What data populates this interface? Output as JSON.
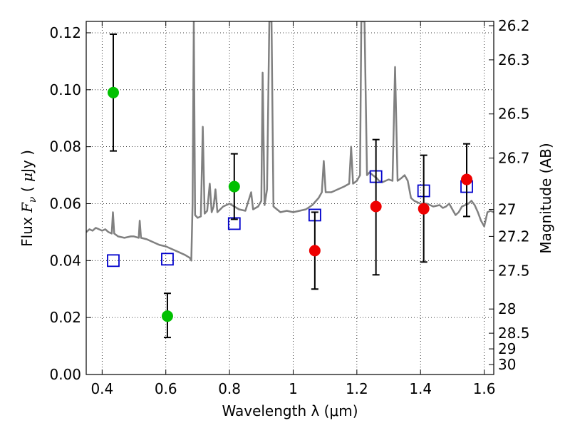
{
  "chart_data": {
    "type": "scatter",
    "xlabel": "Wavelength  λ (μm)",
    "ylabel": "Flux  F_ν  ( μJy )",
    "ylabel_right": "Magnitude (AB)",
    "xlim": [
      0.35,
      1.63
    ],
    "ylim": [
      0.0,
      0.124
    ],
    "grid": true,
    "x_ticks": [
      0.4,
      0.6,
      0.8,
      1.0,
      1.2,
      1.4,
      1.6
    ],
    "x_tick_labels": [
      "0.4",
      "0.6",
      "0.8",
      "1",
      "1.2",
      "1.4",
      "1.6"
    ],
    "y_ticks": [
      0.0,
      0.02,
      0.04,
      0.06,
      0.08,
      0.1,
      0.12
    ],
    "y_tick_labels": [
      "0.00",
      "0.02",
      "0.04",
      "0.06",
      "0.08",
      "0.10",
      "0.12"
    ],
    "right_axis_ticks": [
      {
        "label": "26.2",
        "flux": 0.1225
      },
      {
        "label": "26.3",
        "flux": 0.1105
      },
      {
        "label": "26.5",
        "flux": 0.0915
      },
      {
        "label": "26.7",
        "flux": 0.076
      },
      {
        "label": "27",
        "flux": 0.058
      },
      {
        "label": "27.2",
        "flux": 0.0485
      },
      {
        "label": "27.5",
        "flux": 0.0365
      },
      {
        "label": "28",
        "flux": 0.023
      },
      {
        "label": "28.5",
        "flux": 0.0145
      },
      {
        "label": "29",
        "flux": 0.009
      },
      {
        "label": "30",
        "flux": 0.0035
      }
    ],
    "series": [
      {
        "marker": "circle",
        "color": "#00c000",
        "points": [
          {
            "x": 0.435,
            "y": 0.099,
            "yerr_low": 0.0785,
            "yerr_high": 0.1195
          },
          {
            "x": 0.605,
            "y": 0.0205,
            "yerr_low": 0.013,
            "yerr_high": 0.0285
          },
          {
            "x": 0.815,
            "y": 0.066,
            "yerr_low": 0.0545,
            "yerr_high": 0.0775
          }
        ]
      },
      {
        "marker": "circle",
        "color": "#ee0000",
        "points": [
          {
            "x": 1.068,
            "y": 0.0435,
            "yerr_low": 0.03,
            "yerr_high": 0.057
          },
          {
            "x": 1.26,
            "y": 0.059,
            "yerr_low": 0.035,
            "yerr_high": 0.0825
          },
          {
            "x": 1.41,
            "y": 0.0582,
            "yerr_low": 0.0395,
            "yerr_high": 0.077
          },
          {
            "x": 1.545,
            "y": 0.0685,
            "yerr_low": 0.0555,
            "yerr_high": 0.081
          }
        ]
      },
      {
        "marker": "open-square",
        "color": "#0000cc",
        "points": [
          {
            "x": 0.435,
            "y": 0.04
          },
          {
            "x": 0.605,
            "y": 0.0405
          },
          {
            "x": 0.815,
            "y": 0.053
          },
          {
            "x": 1.068,
            "y": 0.056
          },
          {
            "x": 1.26,
            "y": 0.0695
          },
          {
            "x": 1.41,
            "y": 0.0645
          },
          {
            "x": 1.545,
            "y": 0.066
          }
        ]
      }
    ],
    "spectrum": {
      "color": "#808080",
      "points": [
        [
          0.35,
          0.05
        ],
        [
          0.36,
          0.051
        ],
        [
          0.37,
          0.0505
        ],
        [
          0.38,
          0.0515
        ],
        [
          0.39,
          0.051
        ],
        [
          0.4,
          0.0505
        ],
        [
          0.41,
          0.051
        ],
        [
          0.42,
          0.05
        ],
        [
          0.43,
          0.0495
        ],
        [
          0.434,
          0.057
        ],
        [
          0.438,
          0.0495
        ],
        [
          0.45,
          0.0485
        ],
        [
          0.47,
          0.048
        ],
        [
          0.49,
          0.0485
        ],
        [
          0.5,
          0.0485
        ],
        [
          0.515,
          0.048
        ],
        [
          0.518,
          0.054
        ],
        [
          0.522,
          0.048
        ],
        [
          0.54,
          0.0475
        ],
        [
          0.56,
          0.0465
        ],
        [
          0.58,
          0.0455
        ],
        [
          0.6,
          0.045
        ],
        [
          0.62,
          0.044
        ],
        [
          0.64,
          0.043
        ],
        [
          0.66,
          0.042
        ],
        [
          0.675,
          0.041
        ],
        [
          0.68,
          0.04
        ],
        [
          0.684,
          0.06
        ],
        [
          0.688,
          0.124
        ],
        [
          0.692,
          0.056
        ],
        [
          0.7,
          0.055
        ],
        [
          0.71,
          0.0555
        ],
        [
          0.716,
          0.087
        ],
        [
          0.722,
          0.0565
        ],
        [
          0.73,
          0.0575
        ],
        [
          0.738,
          0.067
        ],
        [
          0.744,
          0.057
        ],
        [
          0.75,
          0.059
        ],
        [
          0.756,
          0.065
        ],
        [
          0.762,
          0.057
        ],
        [
          0.78,
          0.059
        ],
        [
          0.8,
          0.06
        ],
        [
          0.83,
          0.058
        ],
        [
          0.85,
          0.0575
        ],
        [
          0.868,
          0.064
        ],
        [
          0.874,
          0.058
        ],
        [
          0.89,
          0.059
        ],
        [
          0.9,
          0.061
        ],
        [
          0.904,
          0.106
        ],
        [
          0.91,
          0.0595
        ],
        [
          0.918,
          0.065
        ],
        [
          0.925,
          0.124
        ],
        [
          0.932,
          0.124
        ],
        [
          0.938,
          0.059
        ],
        [
          0.96,
          0.057
        ],
        [
          0.98,
          0.0575
        ],
        [
          1.0,
          0.057
        ],
        [
          1.02,
          0.0575
        ],
        [
          1.04,
          0.058
        ],
        [
          1.06,
          0.0595
        ],
        [
          1.08,
          0.062
        ],
        [
          1.09,
          0.064
        ],
        [
          1.096,
          0.075
        ],
        [
          1.102,
          0.064
        ],
        [
          1.12,
          0.064
        ],
        [
          1.14,
          0.065
        ],
        [
          1.16,
          0.066
        ],
        [
          1.176,
          0.067
        ],
        [
          1.182,
          0.08
        ],
        [
          1.188,
          0.067
        ],
        [
          1.2,
          0.068
        ],
        [
          1.21,
          0.07
        ],
        [
          1.214,
          0.124
        ],
        [
          1.224,
          0.124
        ],
        [
          1.232,
          0.07
        ],
        [
          1.24,
          0.071
        ],
        [
          1.25,
          0.07
        ],
        [
          1.262,
          0.069
        ],
        [
          1.27,
          0.068
        ],
        [
          1.28,
          0.0675
        ],
        [
          1.29,
          0.068
        ],
        [
          1.3,
          0.0685
        ],
        [
          1.312,
          0.068
        ],
        [
          1.32,
          0.108
        ],
        [
          1.328,
          0.068
        ],
        [
          1.34,
          0.069
        ],
        [
          1.35,
          0.07
        ],
        [
          1.36,
          0.068
        ],
        [
          1.37,
          0.062
        ],
        [
          1.38,
          0.061
        ],
        [
          1.4,
          0.06
        ],
        [
          1.42,
          0.06
        ],
        [
          1.44,
          0.059
        ],
        [
          1.46,
          0.0595
        ],
        [
          1.47,
          0.0585
        ],
        [
          1.48,
          0.059
        ],
        [
          1.49,
          0.06
        ],
        [
          1.5,
          0.058
        ],
        [
          1.51,
          0.056
        ],
        [
          1.52,
          0.057
        ],
        [
          1.53,
          0.059
        ],
        [
          1.55,
          0.06
        ],
        [
          1.56,
          0.061
        ],
        [
          1.57,
          0.0595
        ],
        [
          1.58,
          0.057
        ],
        [
          1.59,
          0.054
        ],
        [
          1.6,
          0.052
        ],
        [
          1.61,
          0.057
        ],
        [
          1.62,
          0.0575
        ],
        [
          1.63,
          0.057
        ]
      ]
    }
  }
}
